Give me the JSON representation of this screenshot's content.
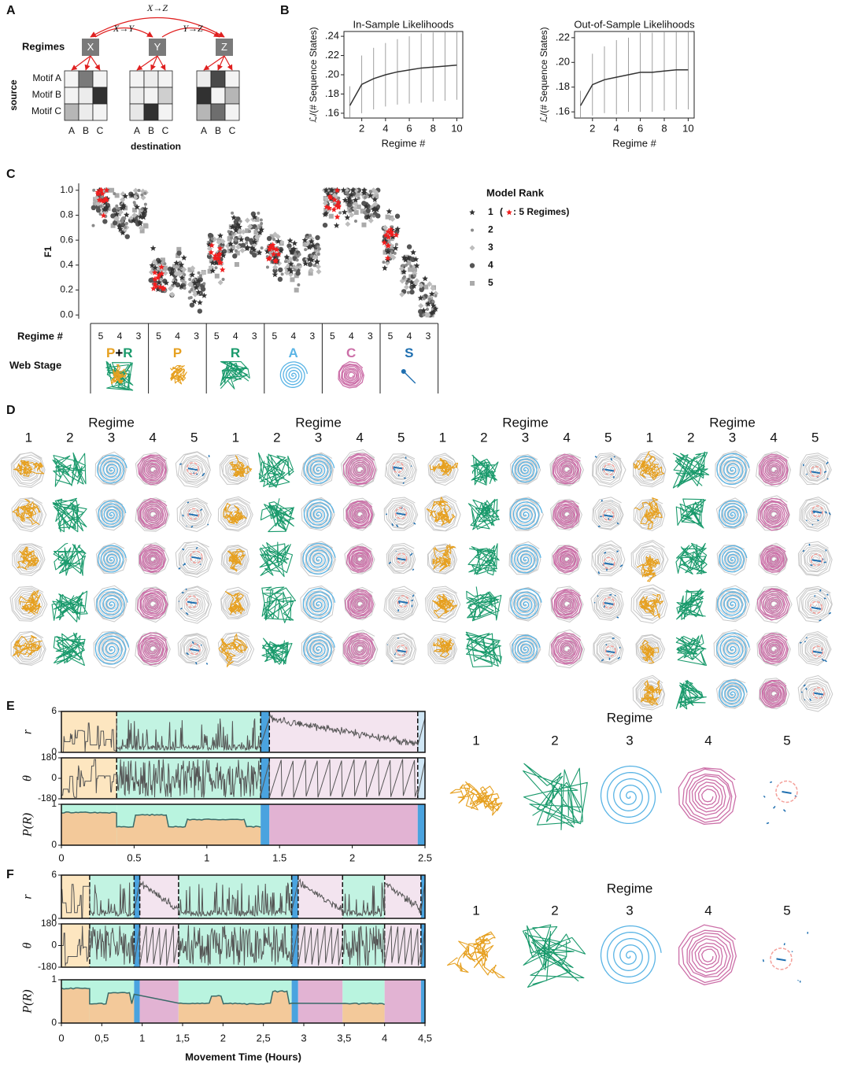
{
  "panel_labels": [
    "A",
    "B",
    "C",
    "D",
    "E",
    "F"
  ],
  "regime_colors": {
    "1": "#e6a020",
    "2": "#1a9a6c",
    "3": "#5ab4e5",
    "4": "#cc6fa8",
    "5": "#1f6fb0"
  },
  "regime_tints": {
    "1": "#fde6c0",
    "2": "#c2f3e2",
    "3": "#cfe6f5",
    "4": "#f3e4ef",
    "5": "#4aa3df"
  },
  "p_colors": {
    "low": "#f3c99a",
    "high": "#b9f4df",
    "4": "#e2b3d3",
    "5": "#4aa3df"
  },
  "panel_a": {
    "regimes_label": "Regimes",
    "nodes": [
      "X",
      "Y",
      "Z"
    ],
    "arrows": [
      "X→Z",
      "X→Y",
      "Y→Z"
    ],
    "rows": [
      "Motif A",
      "Motif B",
      "Motif C"
    ],
    "cols": [
      "A",
      "B",
      "C"
    ],
    "y_label": "source",
    "x_label": "destination",
    "shading": [
      [
        [
          0.05,
          0.55,
          0.05
        ],
        [
          0.05,
          0.08,
          0.85
        ],
        [
          0.3,
          0.08,
          0.05
        ]
      ],
      [
        [
          0.05,
          0.08,
          0.05
        ],
        [
          0.08,
          0.05,
          0.2
        ],
        [
          0.1,
          0.85,
          0.05
        ]
      ],
      [
        [
          0.08,
          0.75,
          0.05
        ],
        [
          0.85,
          0.05,
          0.3
        ],
        [
          0.3,
          0.6,
          0.05
        ]
      ]
    ]
  },
  "chart_data": [
    {
      "type": "line",
      "title": "In-Sample Likelihoods",
      "y_label": "ℒ/(# Sequence States)",
      "x_label": "Regime #",
      "x": [
        1,
        2,
        3,
        4,
        5,
        6,
        7,
        8,
        9,
        10
      ],
      "values": [
        0.168,
        0.19,
        0.196,
        0.2,
        0.203,
        0.205,
        0.207,
        0.208,
        0.209,
        0.21
      ],
      "errors": [
        0.02,
        0.03,
        0.032,
        0.033,
        0.034,
        0.035,
        0.036,
        0.036,
        0.036,
        0.036
      ],
      "color": "#333333",
      "xlim": [
        0.5,
        10.5
      ],
      "xticks": [
        2,
        4,
        6,
        8,
        10
      ],
      "ylim": [
        0.155,
        0.245
      ],
      "yticks": [
        {
          "value": 0.16,
          "label": ".16"
        },
        {
          "value": 0.18,
          "label": ".18"
        },
        {
          "value": 0.2,
          "label": ".20"
        },
        {
          "value": 0.22,
          "label": ".22"
        },
        {
          "value": 0.24,
          "label": ".24"
        }
      ]
    },
    {
      "type": "line",
      "title": "Out-of-Sample Likelihoods",
      "y_label": "ℒ/(# Sequence States)",
      "x_label": "Regime #",
      "x": [
        1,
        2,
        3,
        4,
        5,
        6,
        7,
        8,
        9,
        10
      ],
      "values": [
        0.165,
        0.182,
        0.186,
        0.188,
        0.19,
        0.192,
        0.192,
        0.193,
        0.194,
        0.194
      ],
      "errors": [
        0.012,
        0.025,
        0.027,
        0.03,
        0.03,
        0.032,
        0.032,
        0.032,
        0.032,
        0.032
      ],
      "color": "#333333",
      "xlim": [
        0.5,
        10.5
      ],
      "xticks": [
        2,
        4,
        6,
        8,
        10
      ],
      "ylim": [
        0.155,
        0.225
      ],
      "yticks": [
        {
          "value": 0.16,
          "label": ".16"
        },
        {
          "value": 0.18,
          "label": ".18"
        },
        {
          "value": 0.2,
          "label": ".20"
        },
        {
          "value": 0.22,
          "label": ".22"
        }
      ]
    },
    {
      "type": "scatter",
      "y_label": "F1",
      "ylim": [
        -0.03,
        1.03
      ],
      "yticks": [
        {
          "value": 0,
          "label": "0.0"
        },
        0.2,
        0.4,
        0.6,
        0.8,
        {
          "value": 1,
          "label": "1.0"
        }
      ],
      "legend_title": "Model Rank",
      "legend": [
        "1",
        "2",
        "3",
        "4",
        "5"
      ],
      "note_open": "(",
      "note": ": 5 Regimes)",
      "regime_label": "Regime #",
      "stage_label": "Web Stage",
      "groups": [
        {
          "regimes": [
            5,
            4,
            3
          ],
          "medians": [
            0.92,
            0.8,
            0.85
          ],
          "stage": [
            "P",
            "+",
            "R"
          ],
          "stage_colors": [
            "#e6a020",
            "#000000",
            "#1a9a6c"
          ],
          "icon": "pr"
        },
        {
          "regimes": [
            5,
            4,
            3
          ],
          "medians": [
            0.3,
            0.35,
            0.25
          ],
          "stage": [
            "P"
          ],
          "stage_colors": [
            "#e6a020"
          ],
          "icon": "orange"
        },
        {
          "regimes": [
            5,
            4,
            3
          ],
          "medians": [
            0.5,
            0.62,
            0.62
          ],
          "stage": [
            "R"
          ],
          "stage_colors": [
            "#1a9a6c"
          ],
          "icon": "green"
        },
        {
          "regimes": [
            5,
            4,
            3
          ],
          "medians": [
            0.5,
            0.42,
            0.5
          ],
          "stage": [
            "A"
          ],
          "stage_colors": [
            "#5ab4e5"
          ],
          "icon": "spiral"
        },
        {
          "regimes": [
            5,
            4,
            3
          ],
          "medians": [
            0.95,
            0.93,
            0.88
          ],
          "stage": [
            "C"
          ],
          "stage_colors": [
            "#cc6fa8"
          ],
          "icon": "web"
        },
        {
          "regimes": [
            5,
            4,
            3
          ],
          "medians": [
            0.6,
            0.35,
            0.12
          ],
          "stage": [
            "S"
          ],
          "stage_colors": [
            "#1f6fb0"
          ],
          "icon": "dart"
        }
      ]
    }
  ],
  "panel_d": {
    "groups": [
      {
        "title": "Regime",
        "regimes": [
          1,
          2,
          3,
          4,
          5
        ],
        "rows": 5
      },
      {
        "title": "Regime",
        "regimes": [
          1,
          2,
          3,
          4,
          5
        ],
        "rows": 5
      },
      {
        "title": "Regime",
        "regimes": [
          1,
          2,
          3,
          4,
          5
        ],
        "rows": 5
      },
      {
        "title": "Regime",
        "regimes": [
          1,
          2,
          3,
          4,
          5
        ],
        "rows": 6
      }
    ]
  },
  "timelines": [
    {
      "x_label": null,
      "xlim": [
        0,
        2.5
      ],
      "xticks": [
        0,
        0.5,
        1,
        1.5,
        2,
        2.5
      ],
      "panels": [
        {
          "label": "r",
          "ylim": [
            0,
            6
          ],
          "yticks": [
            0,
            6
          ]
        },
        {
          "label": "θ",
          "ylim": [
            -180,
            180
          ],
          "yticks": [
            180,
            0,
            -180
          ]
        },
        {
          "label": "P(R)",
          "ylim": [
            0,
            1
          ],
          "yticks": [
            0,
            1
          ]
        }
      ],
      "segments": [
        {
          "regime": 1,
          "start": 0,
          "end": 0.38
        },
        {
          "regime": 2,
          "start": 0.38,
          "end": 1.37
        },
        {
          "regime": 5,
          "start": 1.37,
          "end": 1.43
        },
        {
          "regime": 4,
          "start": 1.43,
          "end": 2.45
        },
        {
          "regime": 3,
          "start": 2.45,
          "end": 2.5
        }
      ],
      "examples_title": "Regime",
      "examples": [
        1,
        2,
        3,
        4,
        5
      ]
    },
    {
      "x_label": "Movement Time (Hours)",
      "xlim": [
        0,
        4.5
      ],
      "xticks": [
        0,
        {
          "value": 0.5,
          "label": "0,5"
        },
        1,
        {
          "value": 1.5,
          "label": "1,5"
        },
        2,
        {
          "value": 2.5,
          "label": "2,5"
        },
        3,
        {
          "value": 3.5,
          "label": "3,5"
        },
        4,
        {
          "value": 4.5,
          "label": "4,5"
        }
      ],
      "panels": [
        {
          "label": "r",
          "ylim": [
            0,
            6
          ],
          "yticks": [
            0,
            6
          ]
        },
        {
          "label": "θ",
          "ylim": [
            -180,
            180
          ],
          "yticks": [
            180,
            0,
            -180
          ]
        },
        {
          "label": "P(R)",
          "ylim": [
            0,
            1
          ],
          "yticks": [
            0,
            1
          ]
        }
      ],
      "segments": [
        {
          "regime": 1,
          "start": 0,
          "end": 0.35
        },
        {
          "regime": 2,
          "start": 0.35,
          "end": 0.9
        },
        {
          "regime": 5,
          "start": 0.9,
          "end": 0.97
        },
        {
          "regime": 4,
          "start": 0.97,
          "end": 1.45
        },
        {
          "regime": 2,
          "start": 1.45,
          "end": 2.85
        },
        {
          "regime": 5,
          "start": 2.85,
          "end": 2.93
        },
        {
          "regime": 4,
          "start": 2.93,
          "end": 3.48
        },
        {
          "regime": 2,
          "start": 3.48,
          "end": 4.0
        },
        {
          "regime": 4,
          "start": 4.0,
          "end": 4.45
        },
        {
          "regime": 5,
          "start": 4.45,
          "end": 4.5
        }
      ],
      "examples_title": "Regime",
      "examples": [
        1,
        2,
        3,
        4,
        5
      ]
    }
  ]
}
